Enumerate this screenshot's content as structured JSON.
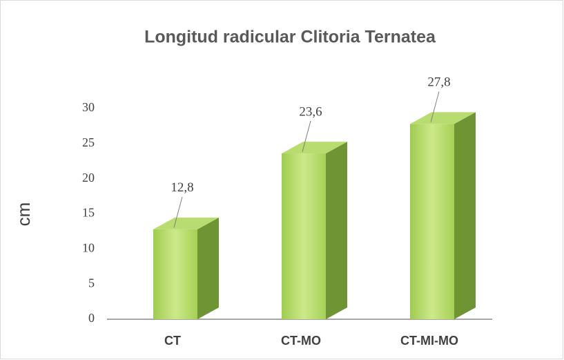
{
  "chart_data": {
    "type": "bar3d",
    "title": "Longitud radicular Clitoria Ternatea",
    "y_label": "cm",
    "categories": [
      "CT",
      "CT-MO",
      "CT-MI-MO"
    ],
    "values": [
      12.8,
      23.6,
      27.8
    ],
    "value_labels": [
      "12,8",
      "23,6",
      "27,8"
    ],
    "color": "#a9d25a",
    "ylim": [
      0,
      30
    ],
    "yticks": [
      0,
      5,
      10,
      15,
      20,
      25,
      30
    ],
    "grid": false
  }
}
